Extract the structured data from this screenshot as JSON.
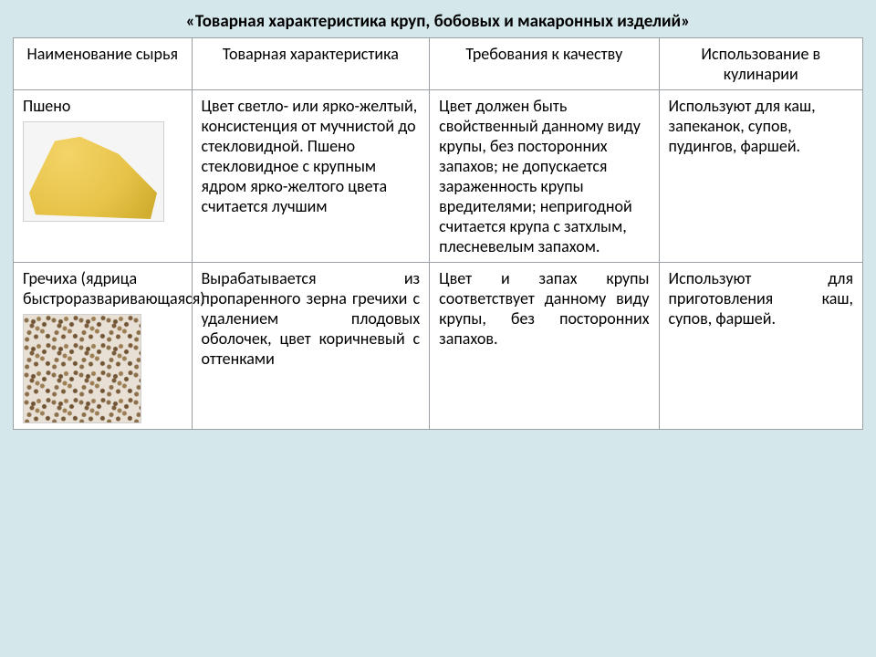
{
  "title": "«Товарная характеристика круп, бобовых и макаронных изделий»",
  "headers": {
    "c1": "Наименование сырья",
    "c2": "Товарная характеристика",
    "c3": "Требования к качеству",
    "c4": "Использование в кулинарии"
  },
  "rows": [
    {
      "name": "Пшено",
      "icon": "millet",
      "char": "Цвет светло- или ярко-желтый, консистенция от мучнистой до стекловидной. Пшено стекловидное с крупным ядром ярко-желтого цвета считается лучшим",
      "char_justify": false,
      "qual": "Цвет должен быть свойственный данному виду крупы, без посторонних запахов; не допускается зараженность крупы вредителями; непригодной считается крупа с затхлым, плесневелым запахом.",
      "qual_justify": false,
      "use": "Используют для каш, запеканок, супов, пудингов, фаршей.",
      "use_justify": false
    },
    {
      "name": "Гречиха (ядрица быстроразваривающаяся)",
      "icon": "buckwheat",
      "char": "Вырабатывается из пропаренного зерна гречихи с удалением плодовых оболочек, цвет коричневый с оттенками",
      "char_justify": true,
      "qual": "Цвет и запах крупы соответствует данному виду крупы, без посторонних запахов.",
      "qual_justify": true,
      "use": "Используют для приготовления каш, супов, фаршей.",
      "use_justify": true
    }
  ],
  "style": {
    "background": "#d4e8ec",
    "border_color": "#9aa0a6",
    "title_fontsize": 19,
    "cell_fontsize": 18,
    "millet_colors": [
      "#f4d469",
      "#e7c348",
      "#d1ad30"
    ],
    "buckwheat_colors": [
      "#8b6f4a",
      "#7a5c3a",
      "#9c7e54",
      "#6f5332"
    ],
    "column_widths_pct": [
      21,
      28,
      27,
      24
    ]
  }
}
